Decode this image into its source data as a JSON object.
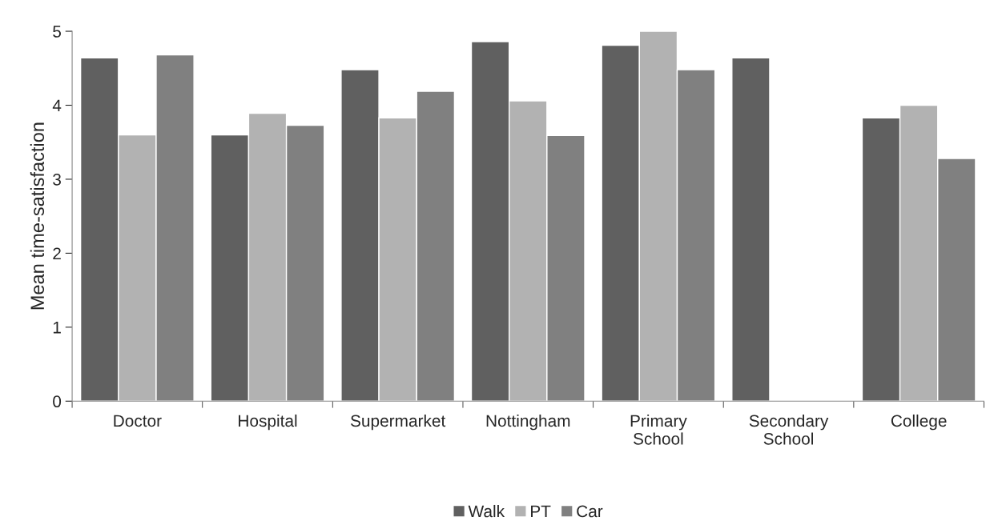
{
  "chart_data": {
    "type": "bar",
    "ylabel": "Mean time-satisfaction",
    "categories": [
      "Doctor",
      "Hospital",
      "Supermarket",
      "Nottingham",
      "Primary\nSchool",
      "Secondary\nSchool",
      "College"
    ],
    "series": [
      {
        "name": "Walk",
        "color": "#606060",
        "values": [
          4.64,
          3.6,
          4.48,
          4.86,
          4.81,
          4.64,
          3.83
        ]
      },
      {
        "name": "PT",
        "color": "#b2b2b2",
        "values": [
          3.6,
          3.89,
          3.83,
          4.06,
          5.0,
          null,
          4.0
        ]
      },
      {
        "name": "Car",
        "color": "#808080",
        "values": [
          4.68,
          3.73,
          4.19,
          3.59,
          4.48,
          null,
          3.28
        ]
      }
    ],
    "ylim": [
      0,
      5
    ],
    "yticks": [
      0,
      1,
      2,
      3,
      4,
      5
    ],
    "grid": false,
    "legend": "bottom"
  }
}
